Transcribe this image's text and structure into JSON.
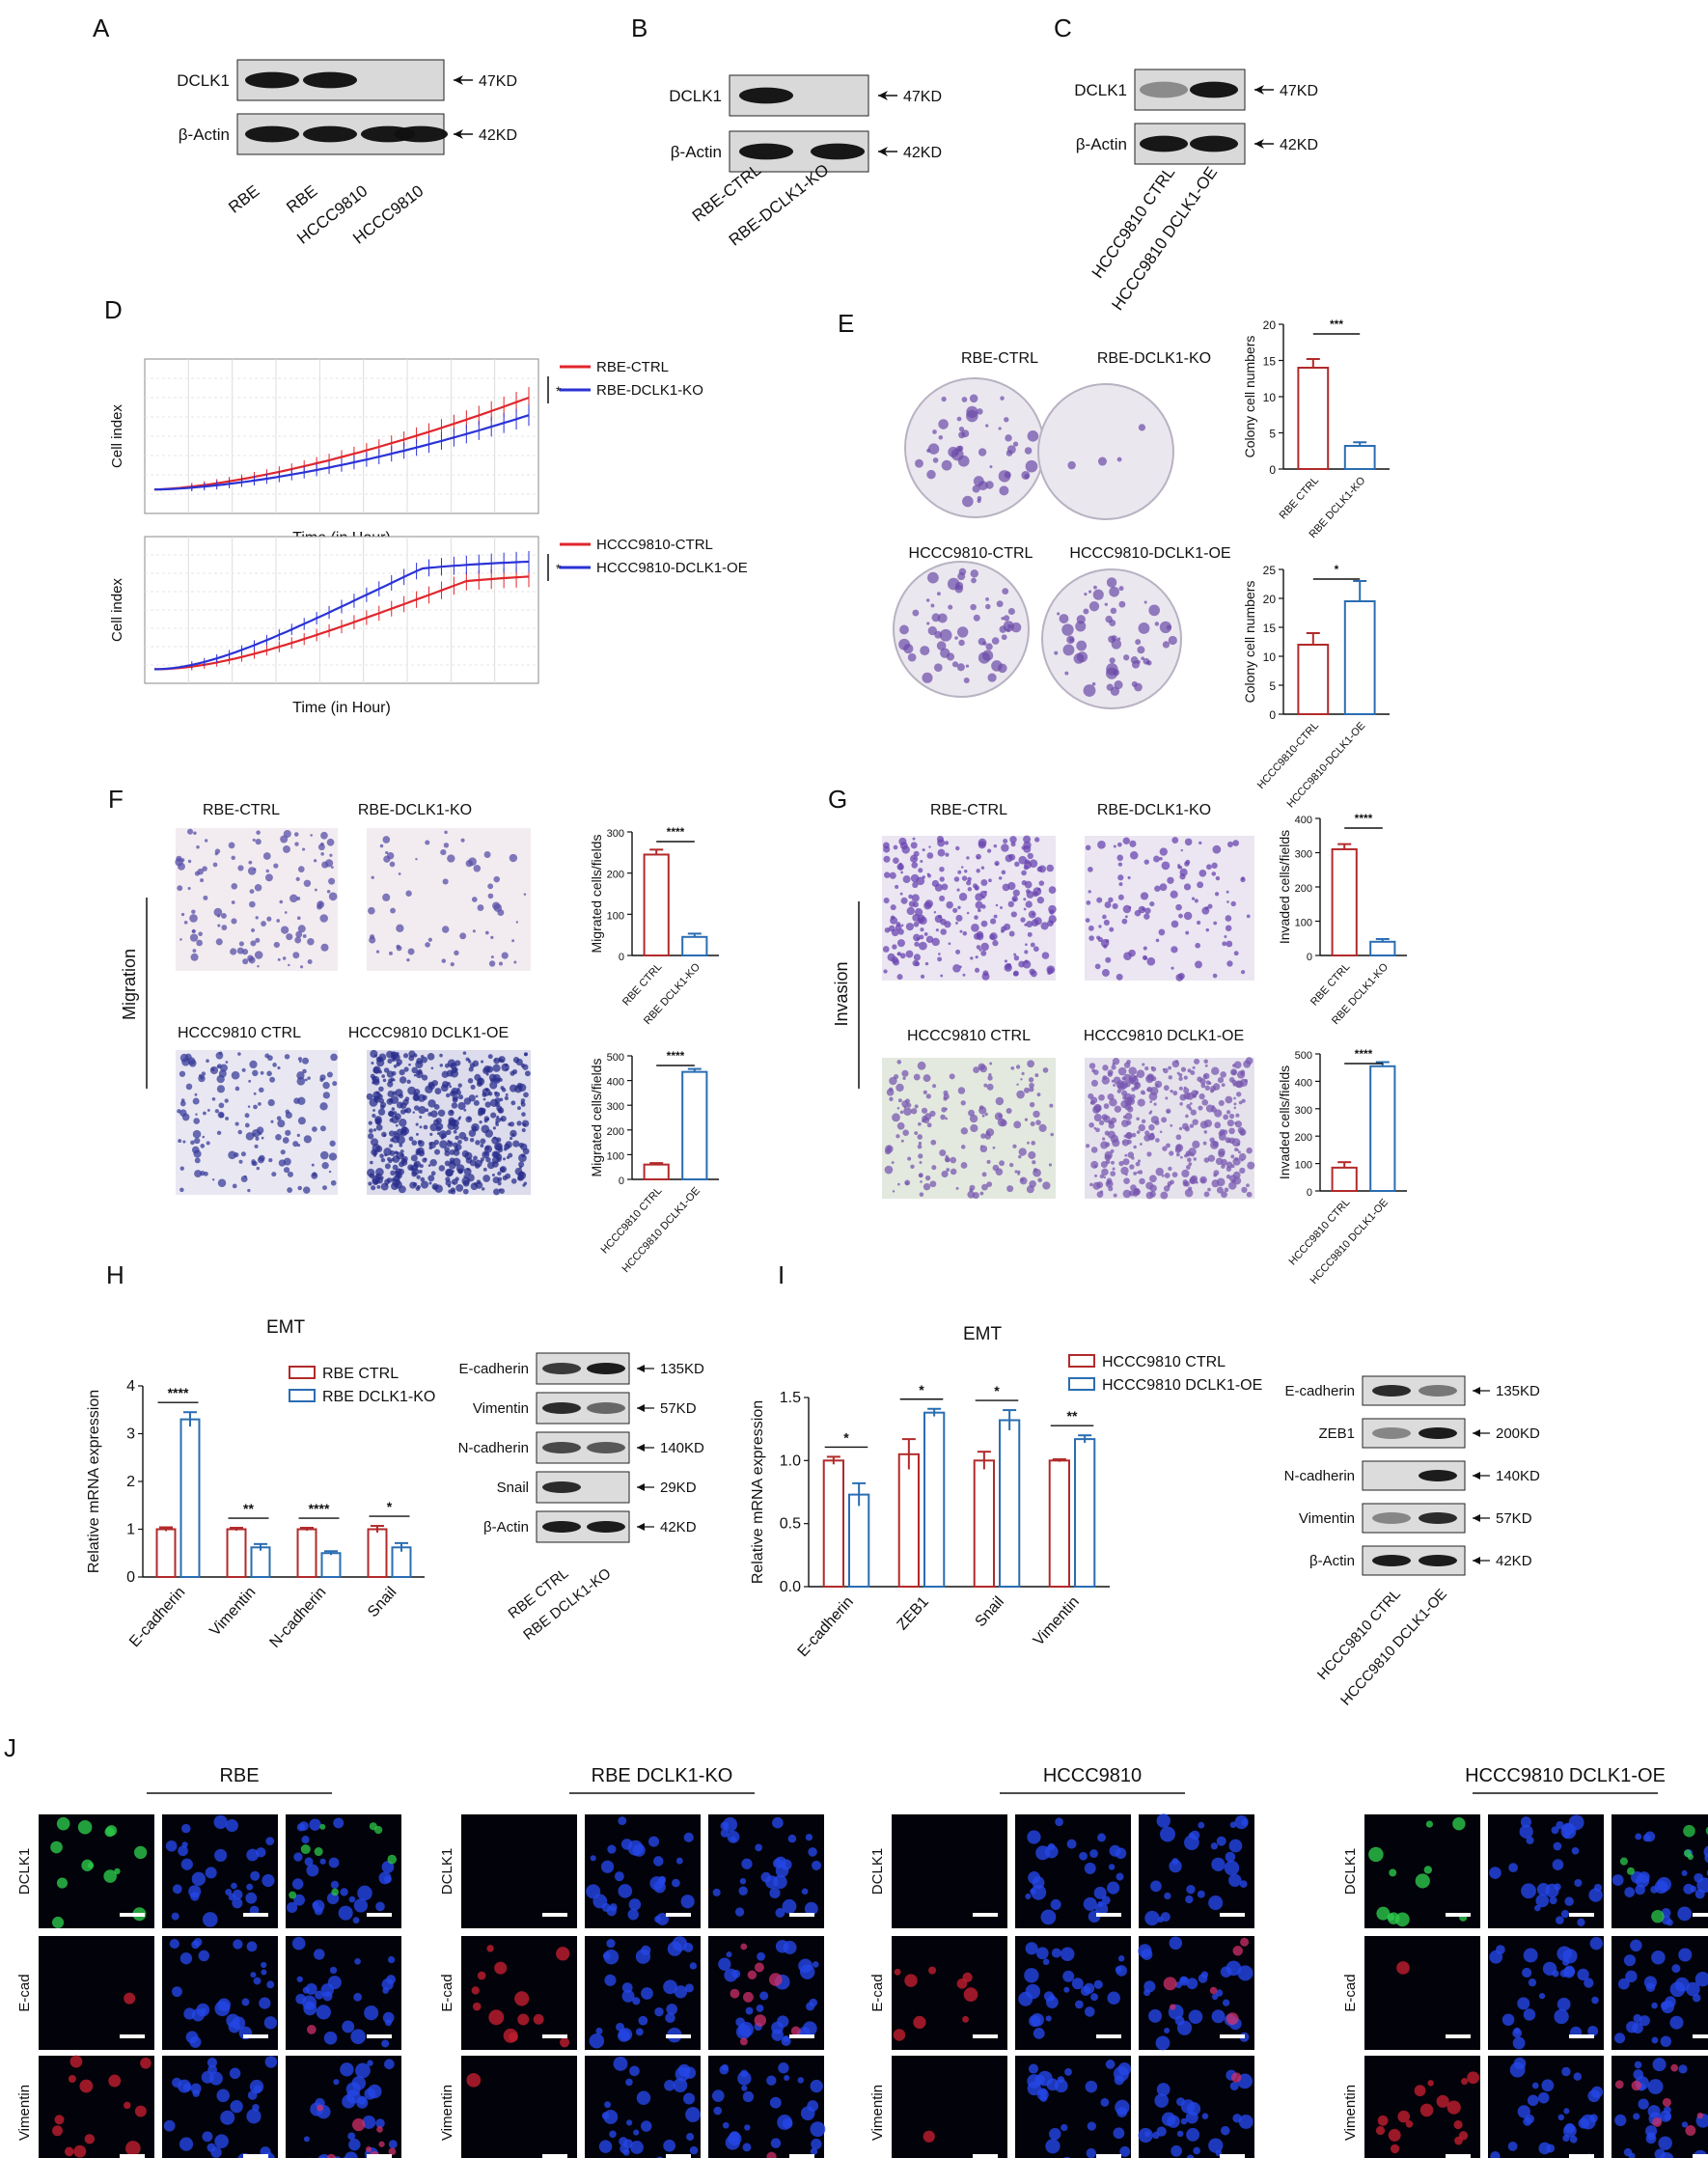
{
  "panel_letters": [
    "A",
    "B",
    "C",
    "D",
    "E",
    "F",
    "G",
    "H",
    "I",
    "J"
  ],
  "panelA": {
    "proteins": [
      "DCLK1",
      "β-Actin"
    ],
    "sizes": [
      "47KD",
      "42KD"
    ],
    "lanes": [
      "RBE",
      "RBE",
      "HCCC9810",
      "HCCC9810"
    ],
    "band_intensity": [
      [
        1,
        1,
        0,
        0
      ],
      [
        1,
        1,
        1,
        1
      ]
    ]
  },
  "panelB": {
    "proteins": [
      "DCLK1",
      "β-Actin"
    ],
    "sizes": [
      "47KD",
      "42KD"
    ],
    "lanes": [
      "RBE-CTRL",
      "RBE-DCLK1-KO"
    ],
    "band_intensity": [
      [
        1,
        0
      ],
      [
        1,
        1
      ]
    ]
  },
  "panelC": {
    "proteins": [
      "DCLK1",
      "β-Actin"
    ],
    "sizes": [
      "47KD",
      "42KD"
    ],
    "lanes": [
      "HCCC9810 CTRL",
      "HCCC9810 DCLK1-OE"
    ],
    "band_intensity": [
      [
        0.2,
        1
      ],
      [
        1,
        1
      ]
    ]
  },
  "panelD": {
    "top": {
      "ylabel": "Cell index",
      "xlabel": "Time (in Hour)",
      "legend": [
        "RBE-CTRL",
        "RBE-DCLK1-KO"
      ],
      "sig": "*",
      "colors": [
        "#e0262c",
        "#2a32d6"
      ]
    },
    "bottom": {
      "ylabel": "Cell index",
      "xlabel": "Time (in Hour)",
      "legend": [
        "HCCC9810-CTRL",
        "HCCC9810-DCLK1-OE"
      ],
      "sig": "*",
      "colors": [
        "#e0262c",
        "#2a32d6"
      ]
    }
  },
  "panelE": {
    "top_labels": [
      "RBE-CTRL",
      "RBE-DCLK1-KO"
    ],
    "bottom_labels": [
      "HCCC9810-CTRL",
      "HCCC9810-DCLK1-OE"
    ]
  },
  "panelF": {
    "side_label": "Migration",
    "top_labels": [
      "RBE-CTRL",
      "RBE-DCLK1-KO"
    ],
    "bottom_labels": [
      "HCCC9810 CTRL",
      "HCCC9810 DCLK1-OE"
    ]
  },
  "panelG": {
    "side_label": "Invasion",
    "top_labels": [
      "RBE-CTRL",
      "RBE-DCLK1-KO"
    ],
    "bottom_labels": [
      "HCCC9810 CTRL",
      "HCCC9810 DCLK1-OE"
    ]
  },
  "panelH": {
    "title": "EMT",
    "blot_proteins": [
      "E-cadherin",
      "Vimentin",
      "N-cadherin",
      "Snail",
      "β-Actin"
    ],
    "blot_sizes": [
      "135KD",
      "57KD",
      "140KD",
      "29KD",
      "42KD"
    ],
    "blot_lanes": [
      "RBE CTRL",
      "RBE DCLK1-KO"
    ]
  },
  "panelI": {
    "title": "EMT",
    "blot_proteins": [
      "E-cadherin",
      "ZEB1",
      "N-cadherin",
      "Vimentin",
      "β-Actin"
    ],
    "blot_sizes": [
      "135KD",
      "200KD",
      "140KD",
      "57KD",
      "42KD"
    ],
    "blot_lanes": [
      "HCCC9810 CTRL",
      "HCCC9810 DCLK1-OE"
    ]
  },
  "panelJ": {
    "groups": [
      "RBE",
      "RBE DCLK1-KO",
      "HCCC9810",
      "HCCC9810 DCLK1-OE"
    ],
    "rows": [
      "DCLK1",
      "E-cad",
      "Vimentin"
    ]
  },
  "chart_data": [
    {
      "id": "E-top",
      "type": "bar",
      "categories": [
        "RBE CTRL",
        "RBE DCLK1-KO"
      ],
      "values": [
        14,
        3.2
      ],
      "errors": [
        1.2,
        0.5
      ],
      "ylabel": "Colony cell numbers",
      "ylim": [
        0,
        20
      ],
      "yticks": [
        0,
        5,
        10,
        15,
        20
      ],
      "sig": "***",
      "colors": [
        "#b22a2a",
        "#2a6db2"
      ]
    },
    {
      "id": "E-bottom",
      "type": "bar",
      "categories": [
        "HCCC9810-CTRL",
        "HCCC9810-DCLK1-OE"
      ],
      "values": [
        12,
        19.5
      ],
      "errors": [
        2,
        3.5
      ],
      "ylabel": "Colony cell numbers",
      "ylim": [
        0,
        25
      ],
      "yticks": [
        0,
        5,
        10,
        15,
        20,
        25
      ],
      "sig": "*",
      "colors": [
        "#b22a2a",
        "#2a6db2"
      ]
    },
    {
      "id": "F-top",
      "type": "bar",
      "categories": [
        "RBE CTRL",
        "RBE DCLK1-KO"
      ],
      "values": [
        245,
        45
      ],
      "errors": [
        12,
        8
      ],
      "ylabel": "Migrated cells/fields",
      "ylim": [
        0,
        300
      ],
      "yticks": [
        0,
        100,
        200,
        300
      ],
      "sig": "****",
      "colors": [
        "#b22a2a",
        "#2a6db2"
      ]
    },
    {
      "id": "F-bottom",
      "type": "bar",
      "categories": [
        "HCCC9810 CTRL",
        "HCCC9810 DCLK1-OE"
      ],
      "values": [
        60,
        435
      ],
      "errors": [
        6,
        12
      ],
      "ylabel": "Migrated cells/fields",
      "ylim": [
        0,
        500
      ],
      "yticks": [
        0,
        100,
        200,
        300,
        400,
        500
      ],
      "sig": "****",
      "colors": [
        "#b22a2a",
        "#2a6db2"
      ]
    },
    {
      "id": "G-top",
      "type": "bar",
      "categories": [
        "RBE CTRL",
        "RBE DCLK1-KO"
      ],
      "values": [
        310,
        40
      ],
      "errors": [
        15,
        8
      ],
      "ylabel": "Invaded cells/fields",
      "ylim": [
        0,
        400
      ],
      "yticks": [
        0,
        100,
        200,
        300,
        400
      ],
      "sig": "****",
      "colors": [
        "#b22a2a",
        "#2a6db2"
      ]
    },
    {
      "id": "G-bottom",
      "type": "bar",
      "categories": [
        "HCCC9810 CTRL",
        "HCCC9810 DCLK1-OE"
      ],
      "values": [
        85,
        455
      ],
      "errors": [
        20,
        15
      ],
      "ylabel": "Invaded cells/fields",
      "ylim": [
        0,
        500
      ],
      "yticks": [
        0,
        100,
        200,
        300,
        400,
        500
      ],
      "sig": "****",
      "colors": [
        "#b22a2a",
        "#2a6db2"
      ]
    },
    {
      "id": "H",
      "type": "bar",
      "categories": [
        "E-cadherin",
        "Vimentin",
        "N-cadherin",
        "Snail"
      ],
      "series": [
        {
          "name": "RBE CTRL",
          "values": [
            1,
            1,
            1,
            1
          ],
          "errors": [
            0.04,
            0.03,
            0.03,
            0.07
          ]
        },
        {
          "name": "RBE DCLK1-KO",
          "values": [
            3.3,
            0.62,
            0.5,
            0.62
          ],
          "errors": [
            0.15,
            0.07,
            0.04,
            0.09
          ]
        }
      ],
      "sig": [
        "****",
        "**",
        "****",
        "*"
      ],
      "ylabel": "Relative mRNA expression",
      "ylim": [
        0,
        4
      ],
      "yticks": [
        0,
        1,
        2,
        3,
        4
      ],
      "colors": [
        "#b22a2a",
        "#2a6db2"
      ]
    },
    {
      "id": "I",
      "type": "bar",
      "categories": [
        "E-cadherin",
        "ZEB1",
        "Snail",
        "Vimentin"
      ],
      "series": [
        {
          "name": "HCCC9810 CTRL",
          "values": [
            1,
            1.05,
            1,
            1
          ],
          "errors": [
            0.03,
            0.12,
            0.07,
            0.01
          ]
        },
        {
          "name": "HCCC9810 DCLK1-OE",
          "values": [
            0.73,
            1.38,
            1.32,
            1.17
          ],
          "errors": [
            0.09,
            0.03,
            0.08,
            0.03
          ]
        }
      ],
      "sig": [
        "*",
        "*",
        "*",
        "**"
      ],
      "ylabel": "Relative mRNA expression",
      "ylim": [
        0,
        1.5
      ],
      "yticks": [
        0.0,
        0.5,
        1.0,
        1.5
      ],
      "colors": [
        "#b22a2a",
        "#2a6db2"
      ]
    }
  ]
}
